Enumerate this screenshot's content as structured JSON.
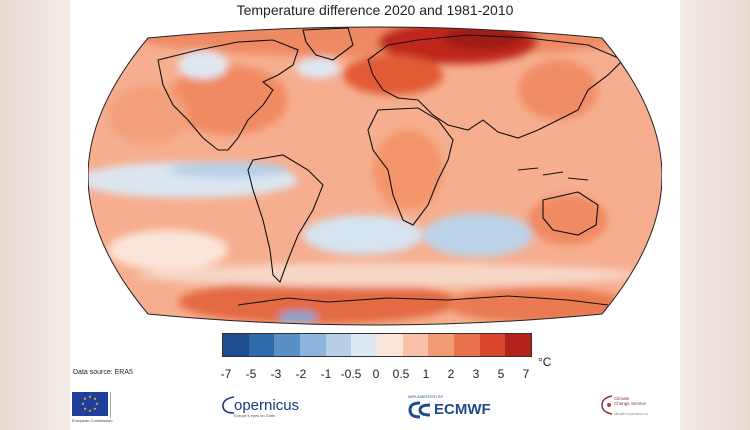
{
  "title": "Temperature difference 2020 and 1981-2010",
  "legend": {
    "ticks": [
      "-7",
      "-5",
      "-3",
      "-2",
      "-1",
      "-0.5",
      "0",
      "0.5",
      "1",
      "2",
      "3",
      "5",
      "7"
    ],
    "unit": "°C",
    "colors": [
      "#1d4d8f",
      "#2f6aab",
      "#5a8fc6",
      "#8db4da",
      "#b7d0e8",
      "#dfe9f3",
      "#fbe5da",
      "#f7c2a7",
      "#f19a74",
      "#e8704a",
      "#d9462b",
      "#b4231b"
    ]
  },
  "data_source": "Data source: ERA5",
  "logos": {
    "eu_caption": "European Commission",
    "copernicus": "opernicus",
    "copernicus_sub": "Europe's eyes on Earth",
    "ecmwf_top": "IMPLEMENTED BY",
    "ecmwf": "ECMWF",
    "c3s_line1": "Climate",
    "c3s_line2": "Change Service",
    "c3s_sub": "climate.copernicus.eu"
  },
  "map": {
    "projection": "Robinson",
    "background_anomaly_color": "#f6a98a",
    "hotspots": [
      {
        "region": "Siberia",
        "color": "#b8221a"
      },
      {
        "region": "Europe",
        "color": "#e0552f"
      },
      {
        "region": "Antarctica coast",
        "color": "#e8704a"
      }
    ],
    "coolspots": [
      {
        "region": "Tropical Pacific",
        "color": "#b7d0e8"
      },
      {
        "region": "South Atlantic / Indian Ocean",
        "color": "#b7d0e8"
      },
      {
        "region": "Southern Ocean",
        "color": "#c9dcee"
      }
    ]
  }
}
